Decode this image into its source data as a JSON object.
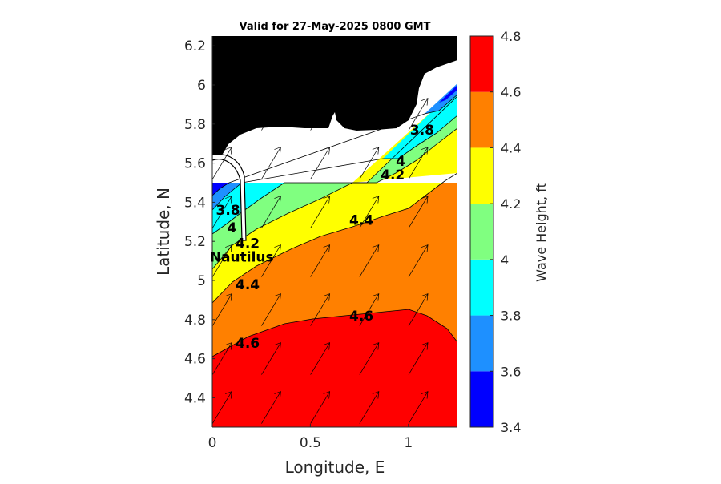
{
  "chart_data": {
    "type": "contour-map",
    "title": "Valid for 27-May-2025 0800 GMT",
    "xlabel": "Longitude, E",
    "ylabel": "Latitude, N",
    "xlim": [
      0,
      1.25
    ],
    "ylim": [
      4.25,
      6.25
    ],
    "x_ticks": [
      0,
      0.5,
      1
    ],
    "x_tick_labels": [
      "0",
      "0.5",
      "1"
    ],
    "y_ticks": [
      4.4,
      4.6,
      4.8,
      5.0,
      5.2,
      5.4,
      5.6,
      5.8,
      6.0,
      6.2
    ],
    "y_tick_labels": [
      "4.4",
      "4.6",
      "4.8",
      "5",
      "5.2",
      "5.4",
      "5.6",
      "5.8",
      "6",
      "6.2"
    ],
    "colorbar": {
      "label": "Wave Height, ft",
      "levels": [
        3.4,
        3.6,
        3.8,
        4.0,
        4.2,
        4.4,
        4.6,
        4.8
      ],
      "tick_labels": [
        "3.4",
        "3.6",
        "3.8",
        "4",
        "4.2",
        "4.4",
        "4.6",
        "4.8"
      ],
      "colors": [
        "#0000ff",
        "#1e90ff",
        "#00ffff",
        "#80ff80",
        "#ffff00",
        "#ff8000",
        "#ff0000"
      ]
    },
    "contour_labels": [
      {
        "text": "3.8",
        "x": 0.08,
        "y": 5.36
      },
      {
        "text": "4",
        "x": 0.1,
        "y": 5.27
      },
      {
        "text": "4.2",
        "x": 0.18,
        "y": 5.19
      },
      {
        "text": "4.4",
        "x": 0.18,
        "y": 4.98
      },
      {
        "text": "4.6",
        "x": 0.18,
        "y": 4.68
      },
      {
        "text": "4.4",
        "x": 0.76,
        "y": 5.31
      },
      {
        "text": "4.6",
        "x": 0.76,
        "y": 4.82
      },
      {
        "text": "4.2",
        "x": 0.92,
        "y": 5.54
      },
      {
        "text": "4",
        "x": 0.96,
        "y": 5.61
      },
      {
        "text": "3.8",
        "x": 1.07,
        "y": 5.77
      }
    ],
    "site_label": {
      "text": "Nautilus",
      "x": 0.15,
      "y": 5.12
    }
  }
}
